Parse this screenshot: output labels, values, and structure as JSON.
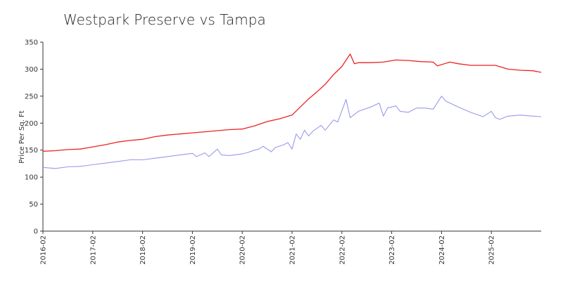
{
  "chart_data": {
    "type": "line",
    "title": "Westpark Preserve vs Tampa",
    "xlabel": "",
    "ylabel": "Price Per Sq. Ft",
    "ylim": [
      0,
      350
    ],
    "yticks": [
      0,
      50,
      100,
      150,
      200,
      250,
      300,
      350
    ],
    "xlim": [
      "2016-02",
      "2026-02"
    ],
    "xticks": [
      "2016-02",
      "2017-02",
      "2018-02",
      "2019-02",
      "2020-02",
      "2021-02",
      "2022-02",
      "2023-02",
      "2024-02",
      "2025-02"
    ],
    "grid": false,
    "legend": "none",
    "series": [
      {
        "color": "#ee2222",
        "x": [
          "2016-02",
          "2016-05",
          "2016-08",
          "2016-11",
          "2017-02",
          "2017-05",
          "2017-08",
          "2017-11",
          "2018-02",
          "2018-05",
          "2018-08",
          "2018-11",
          "2019-02",
          "2019-05",
          "2019-08",
          "2019-11",
          "2020-02",
          "2020-05",
          "2020-08",
          "2020-11",
          "2021-02",
          "2021-04",
          "2021-06",
          "2021-08",
          "2021-10",
          "2021-12",
          "2022-02",
          "2022-04",
          "2022-05",
          "2022-06",
          "2022-09",
          "2022-12",
          "2023-03",
          "2023-06",
          "2023-09",
          "2023-12",
          "2024-01",
          "2024-04",
          "2024-06",
          "2024-09",
          "2024-12",
          "2025-03",
          "2025-06",
          "2025-09",
          "2025-12",
          "2026-02"
        ],
        "values": [
          148,
          149,
          151,
          152,
          156,
          160,
          165,
          168,
          170,
          175,
          178,
          180,
          182,
          184,
          186,
          188,
          189,
          195,
          203,
          208,
          215,
          230,
          245,
          258,
          272,
          290,
          305,
          328,
          310,
          312,
          312,
          313,
          317,
          316,
          314,
          313,
          306,
          313,
          310,
          307,
          307,
          307,
          300,
          298,
          297,
          294
        ]
      },
      {
        "color": "#9999ee",
        "x": [
          "2016-02",
          "2016-05",
          "2016-08",
          "2016-11",
          "2017-02",
          "2017-05",
          "2017-08",
          "2017-11",
          "2018-02",
          "2018-05",
          "2018-08",
          "2018-11",
          "2019-02",
          "2019-03",
          "2019-05",
          "2019-06",
          "2019-08",
          "2019-09",
          "2019-11",
          "2020-02",
          "2020-03",
          "2020-05",
          "2020-06",
          "2020-07",
          "2020-09",
          "2020-10",
          "2020-12",
          "2021-01",
          "2021-02",
          "2021-03",
          "2021-04",
          "2021-05",
          "2021-06",
          "2021-07",
          "2021-09",
          "2021-10",
          "2021-12",
          "2022-01",
          "2022-03",
          "2022-04",
          "2022-06",
          "2022-09",
          "2022-11",
          "2022-12",
          "2023-01",
          "2023-03",
          "2023-04",
          "2023-06",
          "2023-08",
          "2023-10",
          "2023-12",
          "2024-02",
          "2024-03",
          "2024-06",
          "2024-09",
          "2024-12",
          "2025-02",
          "2025-03",
          "2025-04",
          "2025-06",
          "2025-09",
          "2025-12",
          "2026-02"
        ],
        "values": [
          118,
          116,
          119,
          120,
          123,
          126,
          129,
          132,
          132,
          135,
          138,
          141,
          144,
          138,
          145,
          138,
          152,
          141,
          140,
          143,
          145,
          150,
          152,
          157,
          147,
          155,
          160,
          164,
          152,
          180,
          170,
          187,
          176,
          185,
          196,
          187,
          206,
          202,
          244,
          210,
          222,
          230,
          237,
          213,
          228,
          232,
          222,
          220,
          228,
          228,
          226,
          250,
          241,
          230,
          220,
          212,
          222,
          210,
          207,
          213,
          215,
          213,
          212
        ]
      }
    ]
  }
}
